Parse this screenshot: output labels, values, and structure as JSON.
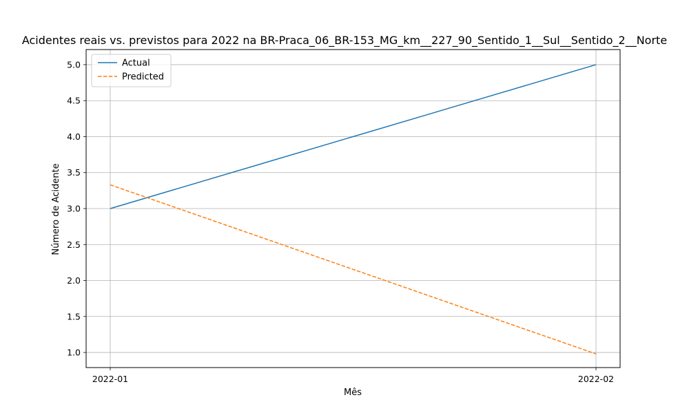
{
  "chart_data": {
    "type": "line",
    "title": "Acidentes reais vs. previstos para 2022 na BR-Praca_06_BR-153_MG_km__227_90_Sentido_1__Sul__Sentido_2__Norte",
    "xlabel": "Mês",
    "ylabel": "Número de Acidente",
    "categories": [
      "2022-01",
      "2022-02"
    ],
    "series": [
      {
        "name": "Actual",
        "values": [
          3.0,
          5.0
        ],
        "color": "#1f77b4",
        "style": "solid"
      },
      {
        "name": "Predicted",
        "values": [
          3.33,
          0.98
        ],
        "color": "#ff7f0e",
        "style": "dashed"
      }
    ],
    "ylim": [
      0.79,
      5.21
    ],
    "yticks": [
      "1.0",
      "1.5",
      "2.0",
      "2.5",
      "3.0",
      "3.5",
      "4.0",
      "4.5",
      "5.0"
    ],
    "grid": true,
    "legend": "upper-left"
  }
}
